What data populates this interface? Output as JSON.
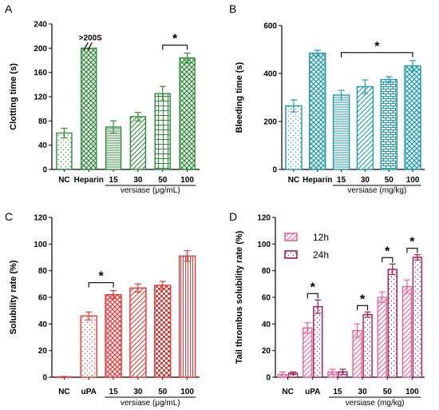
{
  "chart_data": [
    {
      "panel": "A",
      "type": "bar",
      "ylabel": "Clotting time (s)",
      "xlabel": "versiase (μg/mL)",
      "ylim": [
        0,
        240
      ],
      "yticks": [
        0,
        40,
        80,
        120,
        160,
        200,
        240
      ],
      "categories": [
        "NC",
        "Heparin",
        "15",
        "30",
        "50",
        "100"
      ],
      "values": [
        60,
        200,
        70,
        87,
        125,
        184
      ],
      "errors": [
        8,
        0,
        10,
        7,
        12,
        8
      ],
      "annotation": ">200S",
      "significance": [
        {
          "from": "50",
          "to": "100",
          "label": "*"
        }
      ],
      "color": "#2e8b3a"
    },
    {
      "panel": "B",
      "type": "bar",
      "ylabel": "Bleeding time (s)",
      "xlabel": "versiase (mg/kg)",
      "ylim": [
        0,
        600
      ],
      "yticks": [
        0,
        200,
        400,
        600
      ],
      "categories": [
        "NC",
        "Heparin",
        "15",
        "30",
        "50",
        "100"
      ],
      "values": [
        265,
        485,
        310,
        345,
        375,
        432
      ],
      "errors": [
        25,
        12,
        20,
        28,
        12,
        22
      ],
      "significance": [
        {
          "from": "15",
          "to": "100",
          "label": "*"
        }
      ],
      "color": "#1f9aad"
    },
    {
      "panel": "C",
      "type": "bar",
      "ylabel": "Solubility rate (%)",
      "xlabel": "versiase (μg/mL)",
      "ylim": [
        0,
        120
      ],
      "yticks": [
        0,
        20,
        40,
        60,
        80,
        100,
        120
      ],
      "categories": [
        "NC",
        "uPA",
        "15",
        "30",
        "50",
        "100"
      ],
      "values": [
        0.3,
        46,
        62,
        67,
        69,
        91
      ],
      "errors": [
        0.3,
        3,
        3,
        3,
        3,
        4
      ],
      "significance": [
        {
          "from": "uPA",
          "to": "15",
          "label": "*"
        }
      ],
      "color": "#e53935"
    },
    {
      "panel": "D",
      "type": "bar",
      "ylabel": "Tail thrombus solubility rate (%)",
      "xlabel": "versiase (mg/kg)",
      "ylim": [
        0,
        120
      ],
      "yticks": [
        0,
        20,
        40,
        60,
        80,
        100,
        120
      ],
      "categories": [
        "NC",
        "uPA",
        "15",
        "30",
        "50",
        "100"
      ],
      "series": [
        {
          "name": "12h",
          "values": [
            2,
            37,
            4,
            35,
            60,
            68
          ],
          "errors": [
            2,
            4,
            2,
            5,
            4,
            5
          ],
          "color": "#e8649a"
        },
        {
          "name": "24h",
          "values": [
            3,
            53,
            4,
            47,
            81,
            90
          ],
          "errors": [
            1,
            5,
            2,
            2,
            4,
            2
          ],
          "color": "#a0195c"
        }
      ],
      "significance": [
        {
          "category": "uPA",
          "label": "*"
        },
        {
          "category": "30",
          "label": "*"
        },
        {
          "category": "50",
          "label": "*"
        },
        {
          "category": "100",
          "label": "*"
        }
      ]
    }
  ]
}
